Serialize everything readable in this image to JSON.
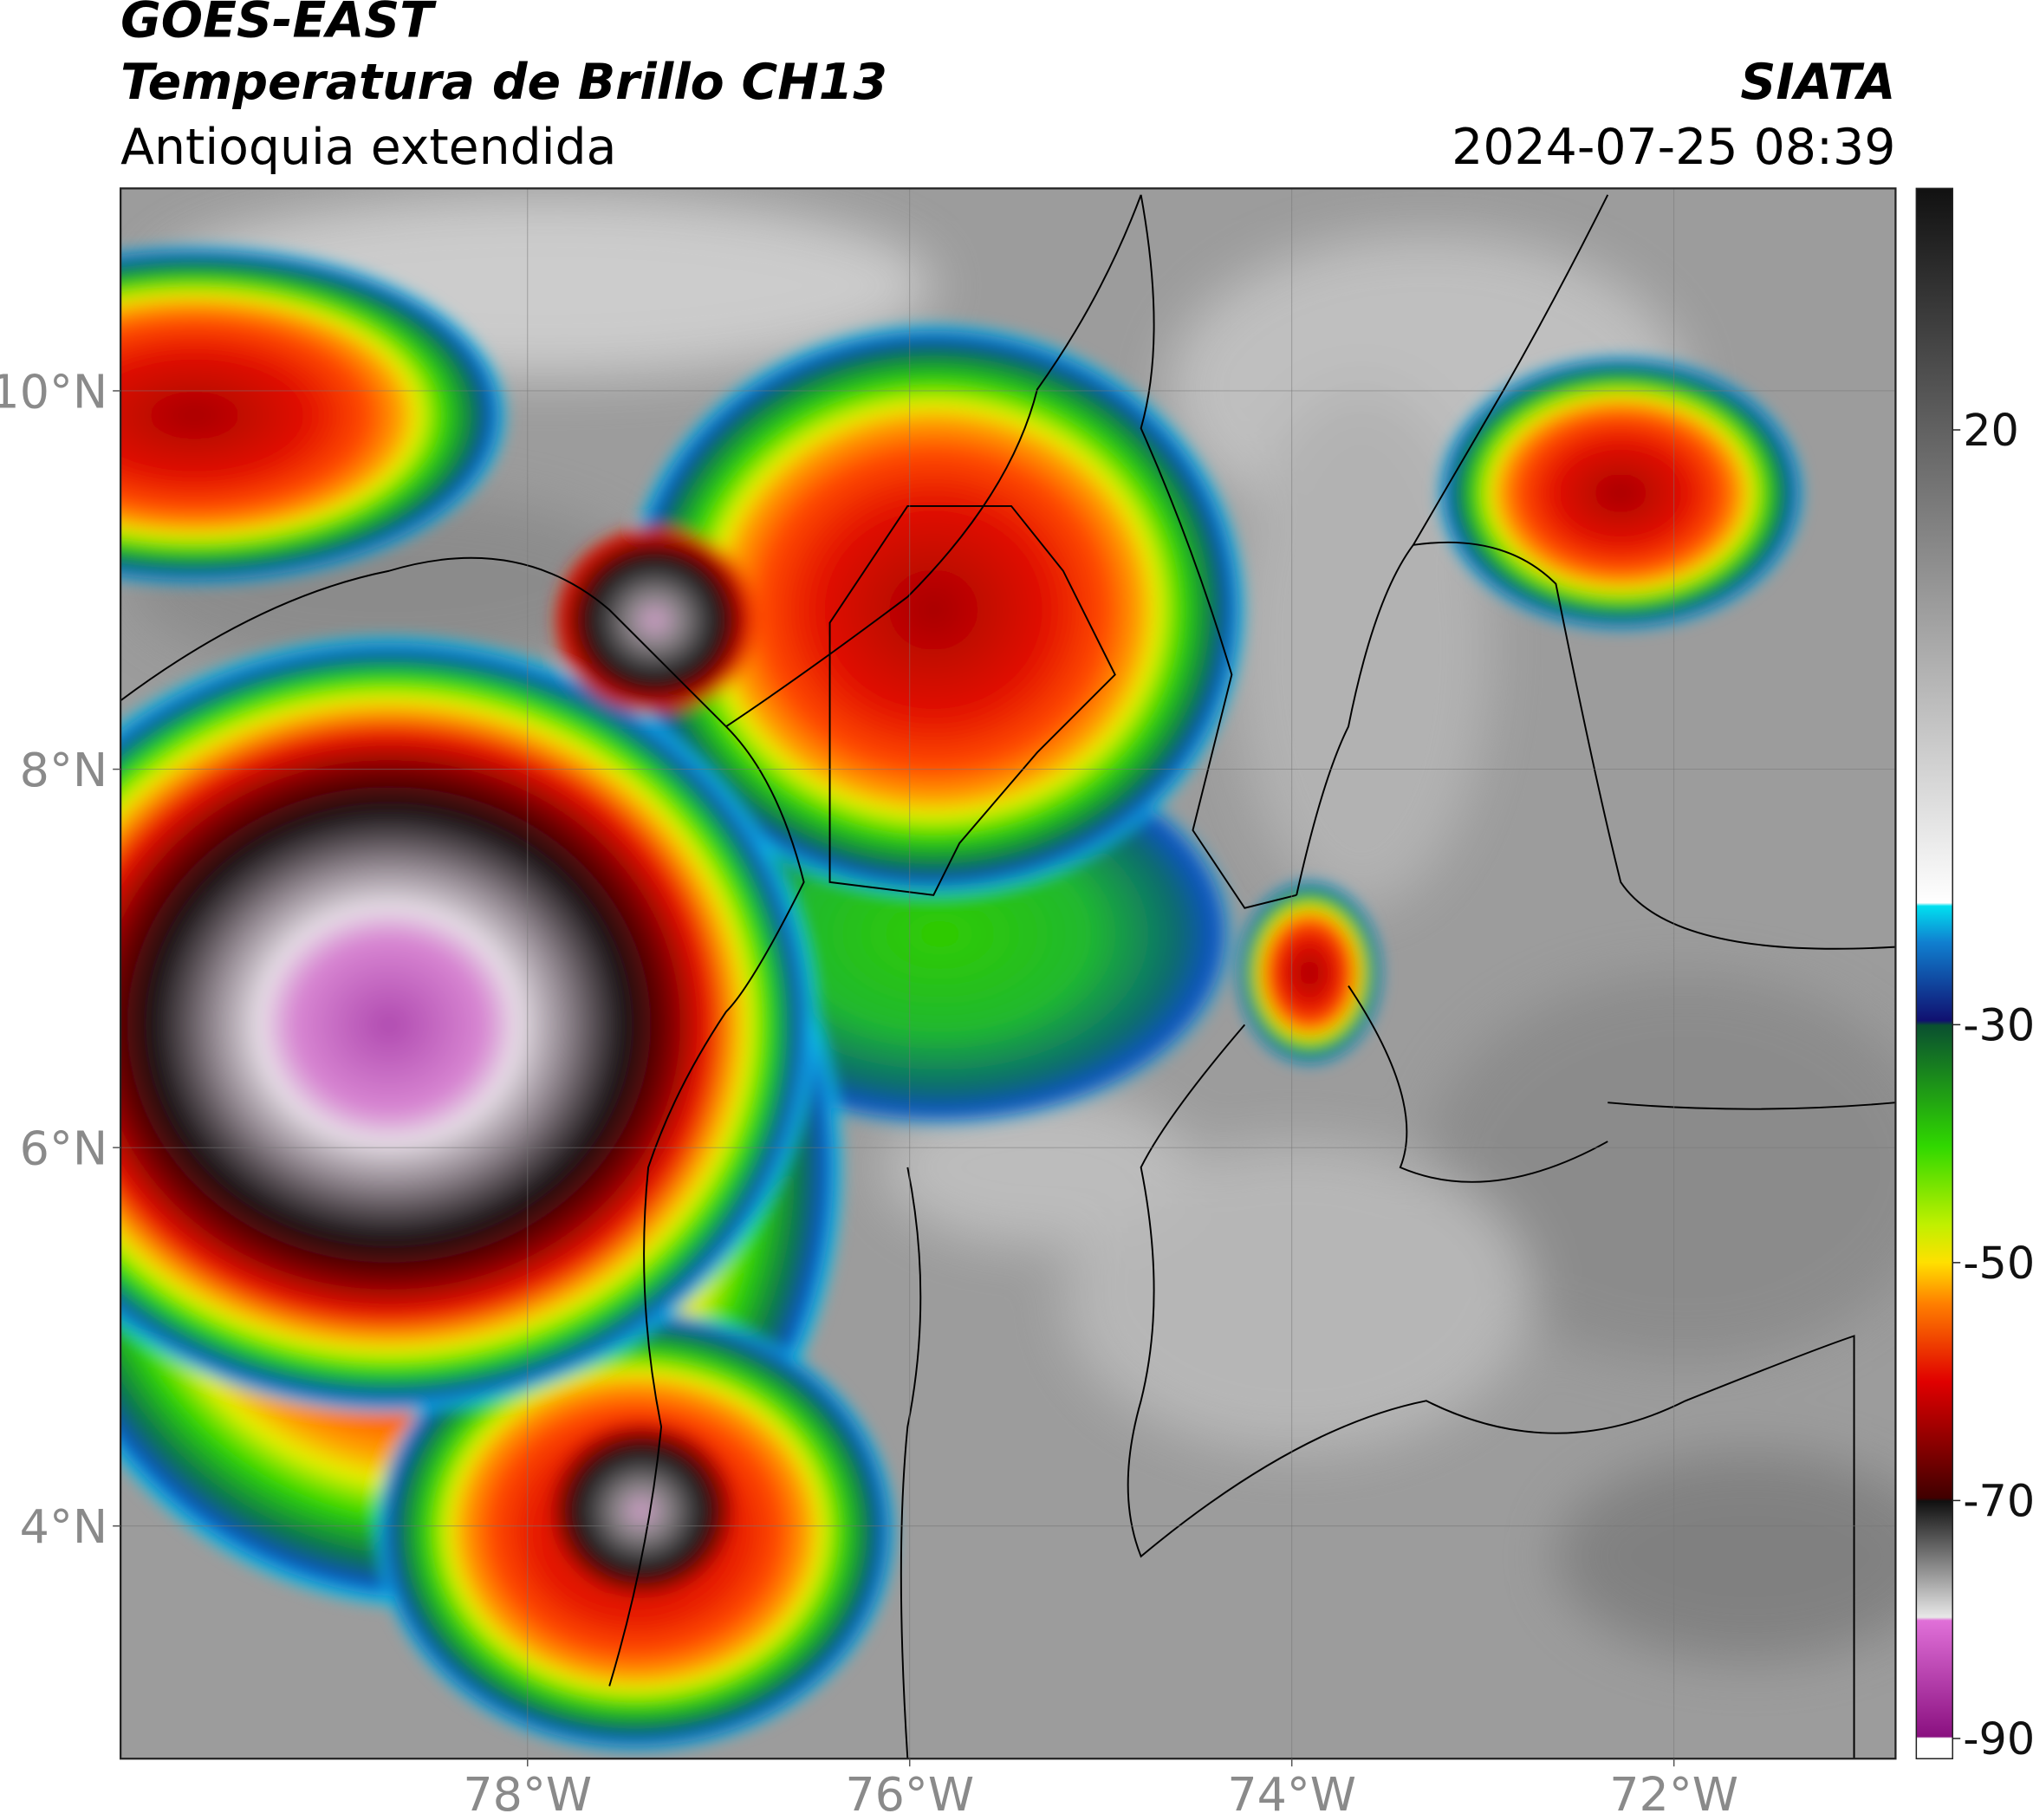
{
  "header": {
    "title": "GOES-EAST",
    "subtitle": "Temperatura de Brillo CH13",
    "region": "Antioquia extendida",
    "source": "SIATA",
    "timestamp": "2024-07-25 08:39"
  },
  "map": {
    "xlim": [
      -80.13,
      -70.84
    ],
    "ylim": [
      2.77,
      11.07
    ],
    "xticks": [
      {
        "value": -78,
        "label": "78°W"
      },
      {
        "value": -76,
        "label": "76°W"
      },
      {
        "value": -74,
        "label": "74°W"
      },
      {
        "value": -72,
        "label": "72°W"
      }
    ],
    "yticks": [
      {
        "value": 4,
        "label": "4°N"
      },
      {
        "value": 6,
        "label": "6°N"
      },
      {
        "value": 8,
        "label": "8°N"
      },
      {
        "value": 10,
        "label": "10°N"
      }
    ],
    "grid": true
  },
  "colorbar": {
    "lim": [
      -91.7,
      40.3
    ],
    "ticks": [
      20,
      -30,
      -50,
      -70,
      -90
    ]
  }
}
